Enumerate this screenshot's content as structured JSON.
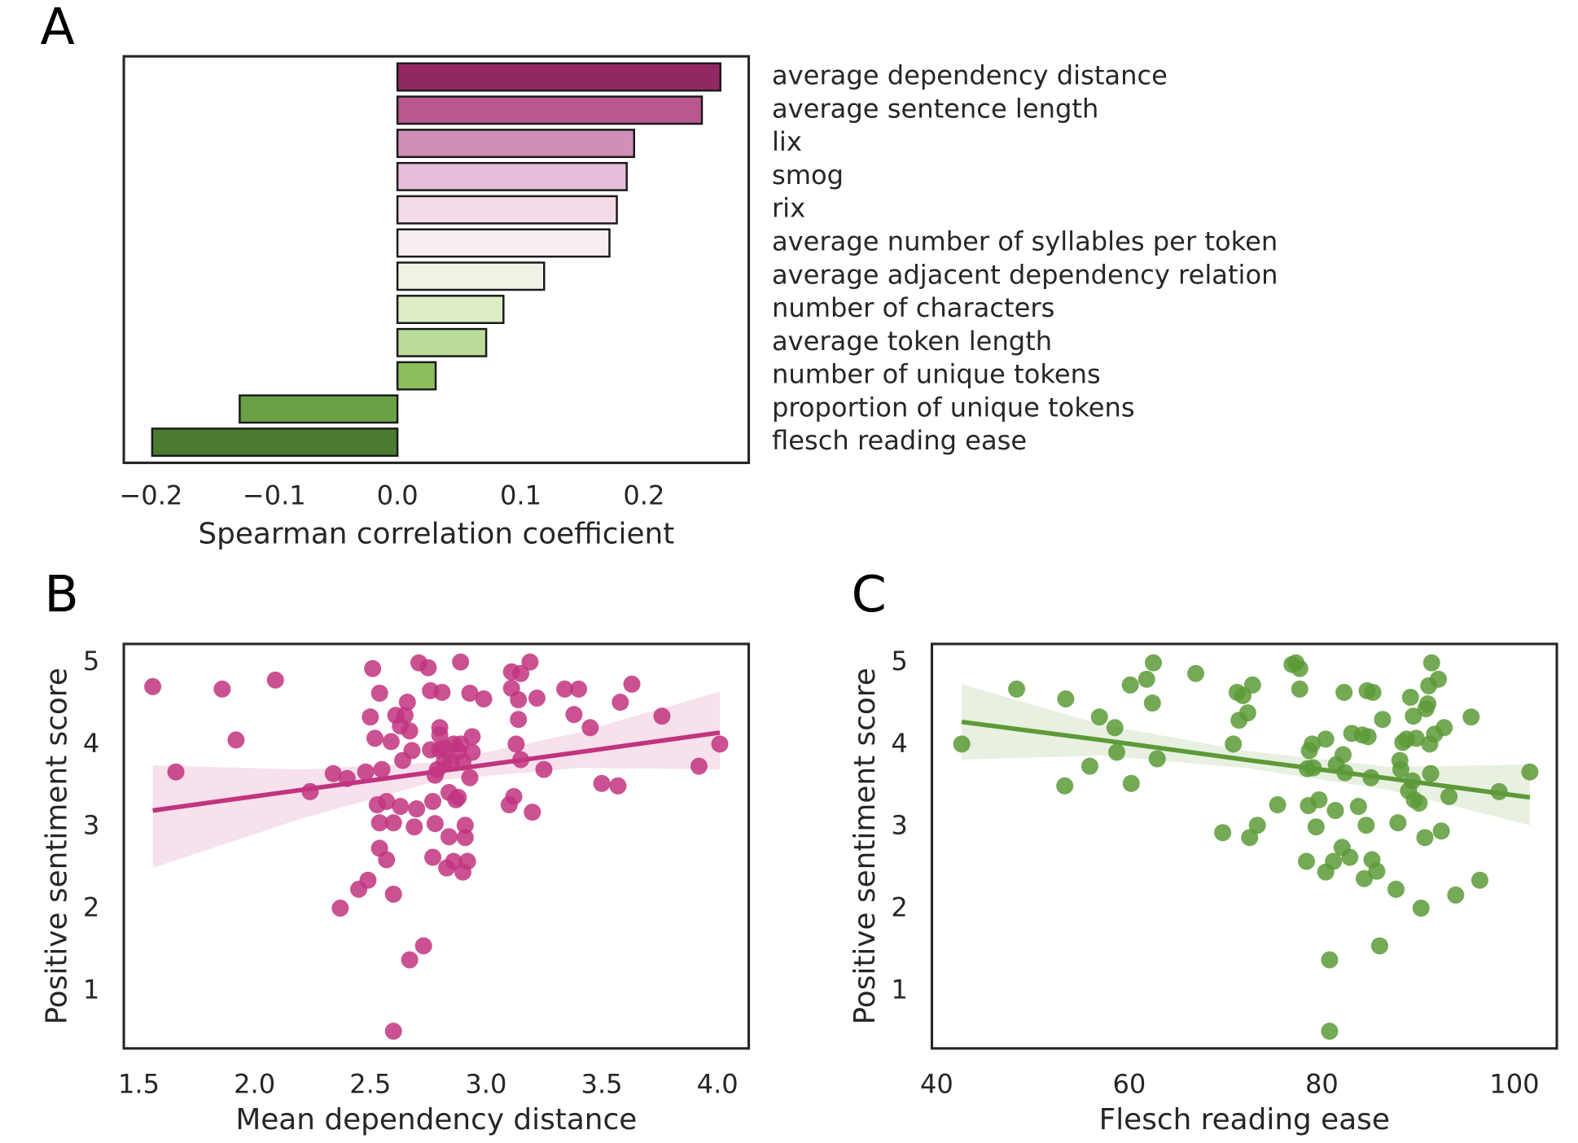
{
  "chart_data": [
    {
      "type": "bar",
      "orientation": "horizontal",
      "panel_label": "A",
      "x_label": "Spearman correlation coefficient",
      "categories": [
        "average dependency distance",
        "average sentence length",
        "lix",
        "smog",
        "rix",
        "average number of syllables per token",
        "average adjacent dependency relation",
        "number of characters",
        "average token length",
        "number of unique tokens",
        "proportion of unique tokens",
        "flesch reading ease"
      ],
      "values": [
        0.262,
        0.247,
        0.192,
        0.186,
        0.178,
        0.172,
        0.119,
        0.086,
        0.072,
        0.031,
        -0.128,
        -0.199
      ],
      "colors": [
        "#922863",
        "#b8588e",
        "#d08fb9",
        "#e6bedb",
        "#f3dbe9",
        "#f7eef3",
        "#eef3e6",
        "#dcedc6",
        "#bcdc9a",
        "#8dbe5c",
        "#6aa145",
        "#4a7b2f"
      ],
      "xlim": [
        -0.222,
        0.285
      ],
      "xticks": [
        {
          "value": -0.2,
          "label": "−0.2"
        },
        {
          "value": -0.1,
          "label": "−0.1"
        },
        {
          "value": 0,
          "label": "0.0"
        },
        0.1,
        0.2
      ],
      "grid": false
    },
    {
      "type": "scatter",
      "panel_label": "B",
      "x_label": "Mean dependency distance",
      "y_label": "Positive sentiment score",
      "color": "#c2347f",
      "x": [
        1.56,
        1.66,
        1.86,
        1.92,
        2.09,
        2.24,
        2.34,
        2.4,
        2.37,
        2.45,
        2.49,
        2.48,
        2.5,
        2.51,
        2.52,
        2.53,
        2.54,
        2.54,
        2.54,
        2.55,
        2.57,
        2.57,
        2.59,
        2.6,
        2.6,
        2.61,
        2.63,
        2.63,
        2.64,
        2.65,
        2.66,
        2.67,
        2.67,
        2.68,
        2.69,
        2.7,
        2.71,
        2.73,
        2.75,
        2.76,
        2.76,
        2.77,
        2.77,
        2.78,
        2.78,
        2.79,
        2.8,
        2.8,
        2.8,
        2.81,
        2.82,
        2.82,
        2.83,
        2.84,
        2.84,
        2.85,
        2.86,
        2.86,
        2.87,
        2.88,
        2.88,
        2.89,
        2.89,
        2.9,
        2.9,
        2.91,
        2.91,
        2.92,
        2.93,
        2.93,
        2.94,
        2.94,
        2.99,
        3.1,
        3.11,
        3.11,
        3.12,
        3.13,
        3.14,
        3.14,
        3.15,
        3.15,
        3.19,
        3.2,
        3.22,
        3.25,
        3.34,
        3.38,
        3.4,
        3.45,
        3.5,
        3.57,
        3.58,
        3.63,
        3.76,
        3.92,
        4.01,
        2.6
      ],
      "y": [
        4.71,
        3.67,
        4.68,
        4.06,
        4.79,
        3.43,
        3.65,
        3.59,
        2.01,
        2.24,
        2.35,
        3.67,
        4.34,
        4.93,
        4.08,
        3.27,
        2.74,
        3.05,
        4.63,
        3.7,
        2.6,
        3.31,
        4.04,
        2.18,
        3.05,
        4.36,
        4.23,
        3.25,
        3.81,
        4.36,
        4.52,
        1.38,
        4.17,
        3.93,
        3.0,
        3.22,
        5.0,
        1.55,
        4.94,
        4.66,
        3.94,
        2.63,
        3.31,
        3.04,
        3.63,
        3.7,
        4.21,
        4.12,
        3.94,
        4.64,
        3.8,
        3.96,
        2.5,
        3.42,
        2.88,
        3.8,
        4.01,
        2.58,
        3.33,
        3.92,
        3.36,
        5.01,
        4.01,
        3.79,
        2.45,
        2.87,
        3.02,
        2.58,
        4.63,
        3.6,
        3.91,
        4.1,
        4.56,
        3.27,
        4.69,
        4.89,
        3.37,
        4.01,
        4.31,
        4.55,
        3.82,
        4.87,
        5.01,
        3.18,
        4.57,
        3.7,
        4.68,
        4.37,
        4.68,
        4.21,
        3.53,
        3.5,
        4.52,
        4.74,
        4.35,
        3.74,
        4.01,
        0.51
      ],
      "fit": {
        "x": [
          1.56,
          2.2,
          2.8,
          3.4,
          4.01
        ],
        "y": [
          3.2,
          3.45,
          3.68,
          3.91,
          4.15
        ],
        "lower": [
          2.5,
          3.1,
          3.57,
          3.72,
          3.7
        ],
        "upper": [
          3.75,
          3.7,
          3.79,
          4.15,
          4.65
        ]
      },
      "xlim": [
        1.435,
        4.135
      ],
      "ylim": [
        0.3,
        5.23
      ],
      "xticks": [
        1.5,
        {
          "value": 2,
          "label": "2.0"
        },
        2.5,
        {
          "value": 3,
          "label": "3.0"
        },
        3.5,
        {
          "value": 4,
          "label": "4.0"
        }
      ],
      "yticks": [
        1,
        2,
        3,
        4,
        5
      ],
      "grid": false
    },
    {
      "type": "scatter",
      "panel_label": "C",
      "x_label": "Flesch reading ease",
      "y_label": "Positive sentiment score",
      "color": "#5c9a37",
      "x": [
        42.6,
        48.3,
        53.4,
        53.3,
        55.9,
        56.9,
        58.5,
        58.7,
        60.2,
        60.1,
        61.8,
        62.5,
        62.4,
        62.9,
        66.9,
        69.7,
        71.2,
        71.4,
        71.8,
        72.3,
        72.8,
        70.8,
        73.3,
        72.5,
        75.4,
        76.9,
        77.3,
        77.7,
        77.7,
        78.4,
        78.5,
        78.6,
        78.7,
        79.0,
        79.1,
        79.4,
        79.7,
        80.4,
        80.4,
        80.8,
        81.2,
        81.4,
        81.5,
        82.1,
        82.2,
        82.3,
        82.4,
        82.9,
        83.1,
        83.8,
        84.2,
        84.4,
        84.6,
        84.7,
        84.8,
        85.1,
        85.2,
        85.3,
        85.7,
        86.0,
        86.3,
        87.7,
        87.9,
        88.1,
        88.2,
        88.4,
        88.8,
        89.0,
        89.2,
        89.4,
        89.5,
        89.6,
        89.8,
        90.1,
        90.3,
        90.7,
        90.8,
        91.0,
        91.1,
        91.2,
        91.3,
        91.4,
        91.7,
        92.1,
        92.4,
        92.7,
        93.2,
        93.9,
        95.5,
        96.4,
        98.4,
        101.6,
        80.8
      ],
      "y": [
        4.01,
        4.68,
        4.56,
        3.5,
        3.74,
        4.34,
        4.21,
        3.91,
        3.53,
        4.73,
        4.8,
        5.0,
        4.51,
        3.83,
        4.87,
        2.93,
        4.64,
        4.3,
        4.6,
        4.39,
        4.73,
        4.01,
        3.02,
        2.87,
        3.27,
        4.98,
        5.0,
        4.93,
        4.68,
        2.58,
        3.71,
        3.26,
        3.93,
        4.01,
        3.72,
        3.0,
        3.33,
        4.07,
        2.45,
        1.38,
        2.58,
        3.2,
        3.76,
        2.75,
        3.88,
        4.64,
        3.66,
        2.63,
        4.14,
        3.25,
        4.12,
        2.37,
        3.02,
        4.66,
        4.1,
        3.6,
        2.6,
        4.64,
        2.46,
        1.55,
        4.31,
        2.24,
        3.05,
        3.81,
        3.7,
        4.03,
        4.07,
        3.44,
        4.58,
        3.56,
        4.35,
        3.33,
        4.08,
        3.29,
        2.01,
        2.87,
        4.44,
        4.5,
        4.72,
        4.01,
        3.65,
        5.0,
        4.13,
        4.8,
        2.95,
        4.21,
        3.37,
        2.17,
        4.34,
        2.35,
        3.43,
        3.67,
        0.51
      ],
      "fit": {
        "x": [
          42.6,
          57,
          72,
          87,
          101.6
        ],
        "y": [
          4.28,
          4.06,
          3.82,
          3.59,
          3.36
        ],
        "lower": [
          3.82,
          3.87,
          3.72,
          3.45,
          3.02
        ],
        "upper": [
          4.74,
          4.25,
          3.93,
          3.73,
          3.76
        ]
      },
      "xlim": [
        39.5,
        104.4
      ],
      "ylim": [
        0.3,
        5.23
      ],
      "xticks": [
        40,
        60,
        80,
        100
      ],
      "yticks": [
        1,
        2,
        3,
        4,
        5
      ],
      "grid": false
    }
  ]
}
